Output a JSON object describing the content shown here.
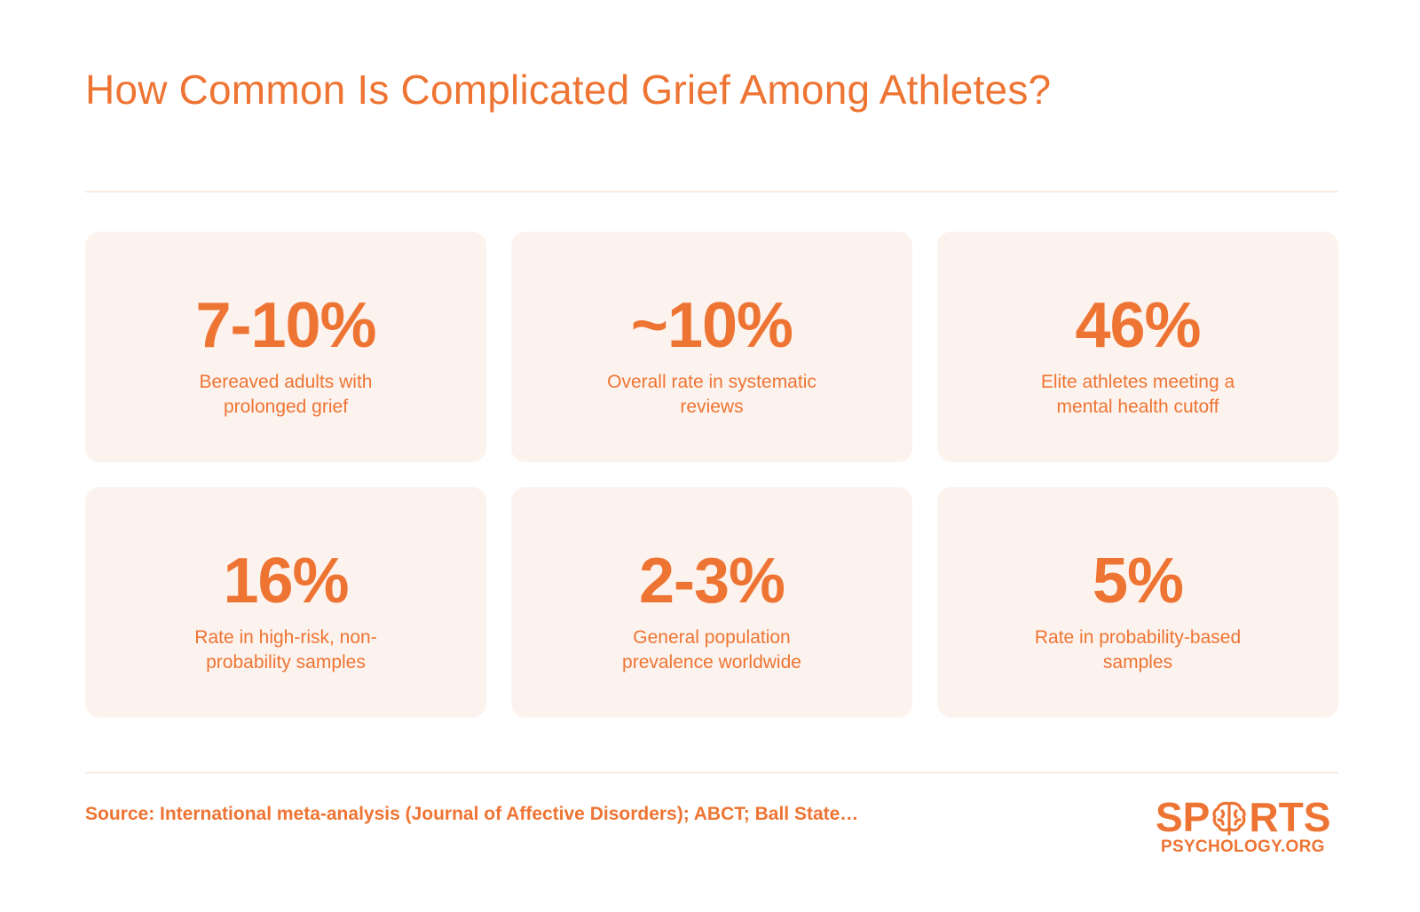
{
  "title": "How Common Is Complicated Grief Among Athletes?",
  "stats": [
    {
      "value": "7-10%",
      "description": "Bereaved adults with prolonged grief"
    },
    {
      "value": "~10%",
      "description": "Overall rate in systematic reviews"
    },
    {
      "value": "46%",
      "description": "Elite athletes meeting a mental health cutoff"
    },
    {
      "value": "16%",
      "description": "Rate in high-risk, non-probability samples"
    },
    {
      "value": "2-3%",
      "description": "General population prevalence worldwide"
    },
    {
      "value": "5%",
      "description": "Rate in probability-based samples"
    }
  ],
  "source": "Source: International meta-analysis (Journal of Affective Disorders); ABCT; Ball State…",
  "logo": {
    "top_left": "SP",
    "top_right": "RTS",
    "bottom": "PSYCHOLOGY.ORG",
    "icon": "brain-icon"
  },
  "colors": {
    "accent": "#ee7433",
    "card_background": "#fdf3ee",
    "divider": "#faeae2"
  }
}
